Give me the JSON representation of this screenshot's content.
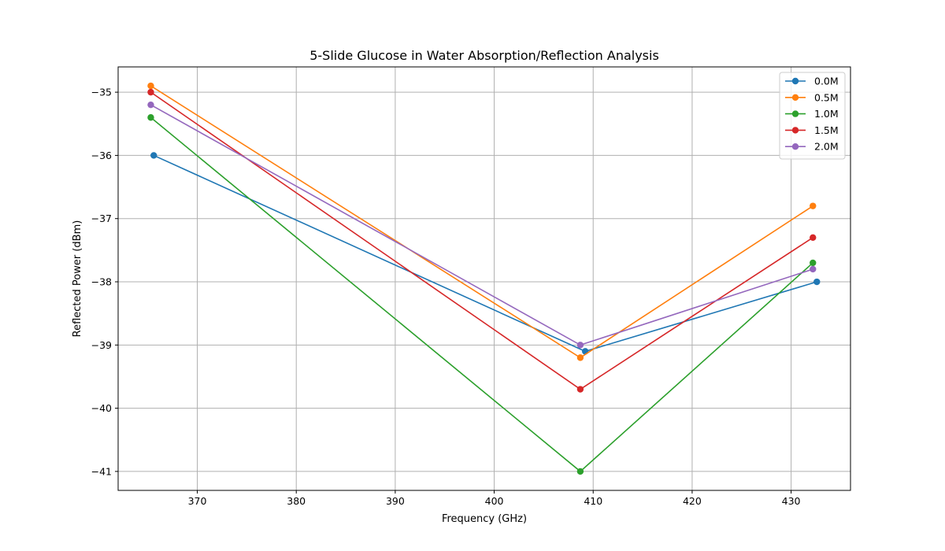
{
  "chart_data": {
    "type": "line",
    "title": "5-Slide Glucose in Water Absorption/Reflection Analysis",
    "xlabel": "Frequency (GHz)",
    "ylabel": "Reflected Power (dBm)",
    "xlim": [
      362.0,
      436.0
    ],
    "ylim": [
      -41.3,
      -34.6
    ],
    "xticks": [
      370,
      380,
      390,
      400,
      410,
      420,
      430
    ],
    "yticks": [
      -41,
      -40,
      -39,
      -38,
      -37,
      -36,
      -35
    ],
    "xtick_labels": [
      "370",
      "380",
      "390",
      "400",
      "410",
      "420",
      "430"
    ],
    "ytick_labels": [
      "−41",
      "−40",
      "−39",
      "−38",
      "−37",
      "−36",
      "−35"
    ],
    "grid": true,
    "legend_position": "top-right",
    "series": [
      {
        "name": "0.0M",
        "color": "#1f77b4",
        "x": [
          365.6,
          409.2,
          432.6
        ],
        "y": [
          -36.0,
          -39.1,
          -38.0
        ]
      },
      {
        "name": "0.5M",
        "color": "#ff7f0e",
        "x": [
          365.3,
          408.7,
          432.2
        ],
        "y": [
          -34.9,
          -39.2,
          -36.8
        ]
      },
      {
        "name": "1.0M",
        "color": "#2ca02c",
        "x": [
          365.3,
          408.7,
          432.2
        ],
        "y": [
          -35.4,
          -41.0,
          -37.7
        ]
      },
      {
        "name": "1.5M",
        "color": "#d62728",
        "x": [
          365.3,
          408.7,
          432.2
        ],
        "y": [
          -35.0,
          -39.7,
          -37.3
        ]
      },
      {
        "name": "2.0M",
        "color": "#9467bd",
        "x": [
          365.3,
          408.7,
          432.2
        ],
        "y": [
          -35.2,
          -39.0,
          -37.8
        ]
      }
    ]
  }
}
